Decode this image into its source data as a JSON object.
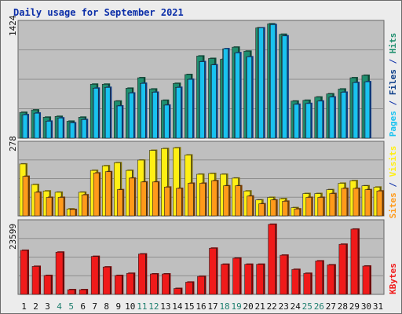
{
  "colors": {
    "background": "#ececec",
    "plot_bg": "#bfbfbf",
    "title": "#0b2ea8",
    "hits_front": "#1f8f6f",
    "hits_side": "#0b4f3a",
    "files_front": "#19c2f0",
    "files_side": "#0b3d88",
    "pages_front": "#19c2f0",
    "visits_front": "#ffef14",
    "visits_side": "#7f6f00",
    "sites_front": "#ff9a1a",
    "sites_side": "#7a3e00",
    "kbytes_front": "#f01a1a",
    "kbytes_side": "#7a0000",
    "weekend_label": "#1f7f6f",
    "weekday_label": "#111111"
  },
  "chart_data": [
    {
      "type": "bar",
      "title": "Daily usage for September 2021",
      "panel": "hits-files-pages",
      "ymax_label": "1424",
      "ylim": [
        0,
        1424
      ],
      "categories": [
        "1",
        "2",
        "3",
        "4",
        "5",
        "6",
        "7",
        "8",
        "9",
        "10",
        "11",
        "12",
        "13",
        "14",
        "15",
        "16",
        "17",
        "18",
        "19",
        "20",
        "21",
        "22",
        "23",
        "24",
        "25",
        "26",
        "27",
        "28",
        "29",
        "30",
        "31"
      ],
      "weekend_days": [
        "4",
        "5",
        "11",
        "12",
        "18",
        "19",
        "25",
        "26"
      ],
      "right_label_parts": [
        {
          "text": "Pages",
          "color": "#19c2f0"
        },
        {
          "text": " / ",
          "color": "#0b2ea8"
        },
        {
          "text": "Files",
          "color": "#0b3d88"
        },
        {
          "text": " / ",
          "color": "#0b2ea8"
        },
        {
          "text": "Hits",
          "color": "#1f8f6f"
        }
      ],
      "series": [
        {
          "name": "Hits",
          "values": [
            330,
            360,
            270,
            280,
            220,
            270,
            680,
            680,
            470,
            630,
            760,
            620,
            480,
            690,
            800,
            1030,
            1000,
            990,
            1140,
            1090,
            1380,
            1430,
            1300,
            470,
            480,
            520,
            560,
            620,
            760,
            790,
            0
          ]
        },
        {
          "name": "Files",
          "values": [
            300,
            320,
            220,
            260,
            200,
            240,
            630,
            640,
            410,
            570,
            690,
            580,
            420,
            640,
            740,
            960,
            920,
            1120,
            1070,
            1020,
            1380,
            1420,
            1280,
            430,
            440,
            470,
            520,
            580,
            700,
            710,
            0
          ]
        },
        {
          "name": "Pages",
          "values": [
            300,
            320,
            220,
            260,
            200,
            240,
            630,
            640,
            410,
            570,
            690,
            580,
            420,
            640,
            740,
            960,
            920,
            1120,
            1070,
            1020,
            1380,
            1420,
            1280,
            430,
            440,
            470,
            520,
            580,
            700,
            710,
            0
          ]
        }
      ]
    },
    {
      "type": "bar",
      "panel": "visits-sites",
      "ymax_label": "278",
      "ylim": [
        0,
        278
      ],
      "right_label_parts": [
        {
          "text": "Sites",
          "color": "#ff9a1a"
        },
        {
          "text": " / ",
          "color": "#0b2ea8"
        },
        {
          "text": "Visits",
          "color": "#ffef14"
        }
      ],
      "series": [
        {
          "name": "Visits",
          "values": [
            205,
            125,
            100,
            95,
            30,
            95,
            180,
            198,
            210,
            180,
            220,
            258,
            265,
            268,
            240,
            165,
            168,
            165,
            150,
            100,
            65,
            75,
            70,
            35,
            90,
            90,
            105,
            130,
            140,
            120,
            115
          ]
        },
        {
          "name": "Sites",
          "values": [
            157,
            95,
            75,
            75,
            28,
            85,
            170,
            175,
            105,
            150,
            135,
            135,
            115,
            110,
            130,
            130,
            140,
            120,
            120,
            80,
            50,
            65,
            60,
            30,
            75,
            75,
            90,
            110,
            110,
            105,
            100
          ]
        }
      ]
    },
    {
      "type": "bar",
      "panel": "kbytes",
      "ymax_label": "23599",
      "ylim": [
        0,
        23599
      ],
      "right_label_parts": [
        {
          "text": "KBytes",
          "color": "#f01a1a"
        }
      ],
      "series": [
        {
          "name": "KBytes",
          "values": [
            14800,
            9500,
            6500,
            14200,
            1800,
            1800,
            12800,
            9300,
            6500,
            7200,
            13600,
            7000,
            7000,
            2200,
            4300,
            6200,
            15500,
            10200,
            12200,
            10200,
            10200,
            23400,
            13200,
            8500,
            7200,
            11300,
            10000,
            16800,
            21800,
            9600,
            0
          ]
        }
      ]
    }
  ]
}
